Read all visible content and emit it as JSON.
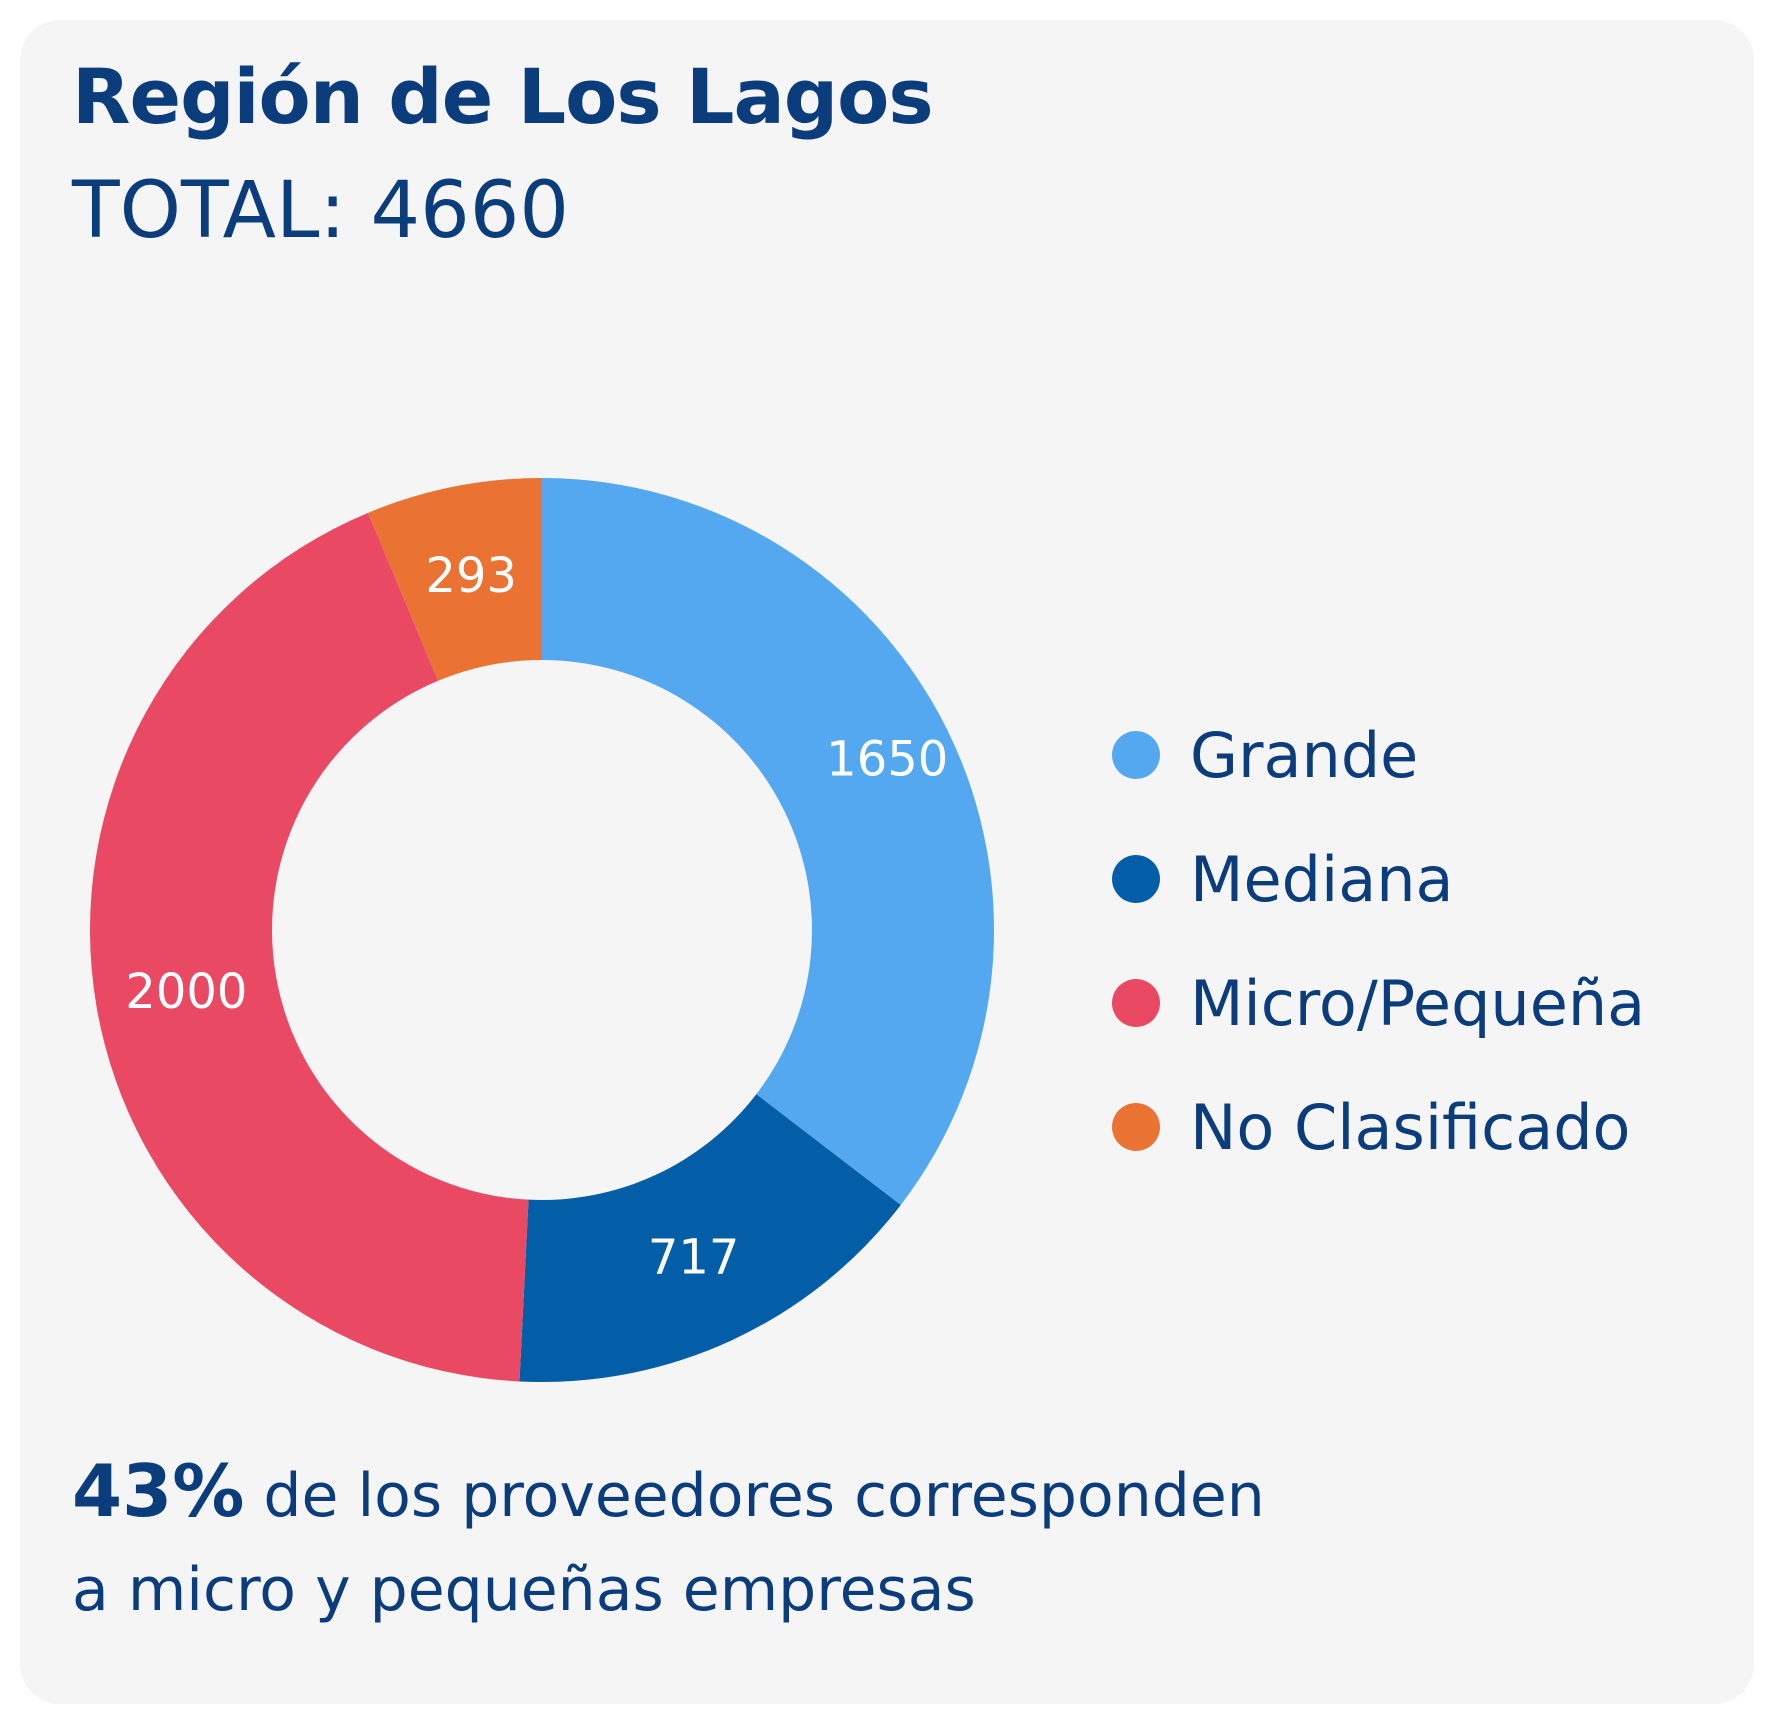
{
  "chart_data": {
    "type": "pie",
    "title": "Región de Los Lagos",
    "subtitle": "TOTAL: 4660",
    "categories": [
      "Grande",
      "Mediana",
      "Micro/Pequeña",
      "No Clasificado"
    ],
    "values": [
      1650,
      717,
      2000,
      293
    ],
    "value_labels": [
      "1650",
      "717",
      "2000",
      "293"
    ],
    "colors": [
      "#54a8f0",
      "#035ea7",
      "#e94962",
      "#ea7334"
    ],
    "donut": true,
    "legend_position": "right"
  },
  "note": {
    "highlight": "43%",
    "line1": " de los proveedores corresponden",
    "line2": "a micro y pequeñas empresas"
  }
}
